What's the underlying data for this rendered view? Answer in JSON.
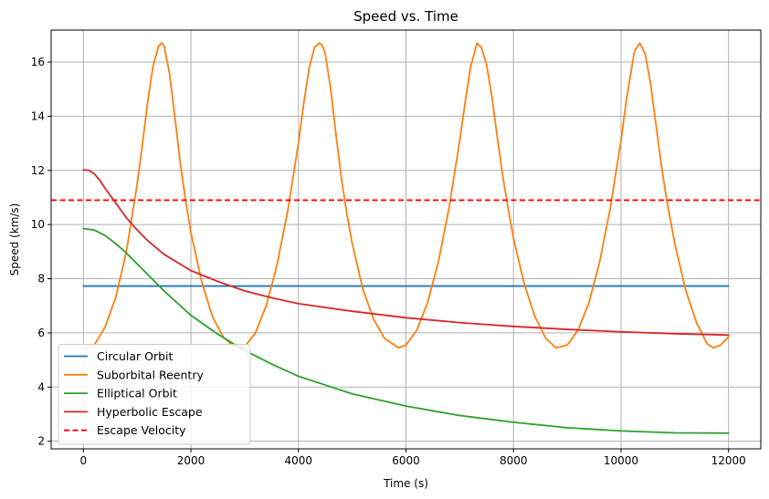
{
  "chart_data": {
    "type": "line",
    "title": "Speed vs. Time",
    "xlabel": "Time (s)",
    "ylabel": "Speed (km/s)",
    "xlim": [
      -600,
      12600
    ],
    "ylim": [
      1.72,
      17.18
    ],
    "x_ticks": [
      0,
      2000,
      4000,
      6000,
      8000,
      10000,
      12000
    ],
    "y_ticks": [
      2,
      4,
      6,
      8,
      10,
      12,
      14,
      16
    ],
    "grid": true,
    "legend_position": "lower-left",
    "series": [
      {
        "name": "Circular Orbit",
        "color": "#1f77b4",
        "style": "solid",
        "x": [
          0,
          12000
        ],
        "y": [
          7.73,
          7.73
        ]
      },
      {
        "name": "Suborbital Reentry",
        "color": "#ff7f0e",
        "style": "solid",
        "x": [
          0,
          200,
          400,
          600,
          800,
          1000,
          1100,
          1200,
          1300,
          1400,
          1460,
          1500,
          1600,
          1700,
          1800,
          1900,
          2000,
          2200,
          2400,
          2600,
          2800,
          2930,
          3000,
          3200,
          3400,
          3600,
          3800,
          4000,
          4100,
          4200,
          4300,
          4390,
          4450,
          4500,
          4600,
          4700,
          4800,
          4900,
          5000,
          5200,
          5400,
          5600,
          5860,
          6000,
          6200,
          6400,
          6600,
          6800,
          7000,
          7100,
          7200,
          7320,
          7400,
          7500,
          7600,
          7700,
          7800,
          7900,
          8000,
          8200,
          8400,
          8600,
          8790,
          9000,
          9200,
          9400,
          9600,
          9800,
          10000,
          10100,
          10250,
          10350,
          10450,
          10550,
          10650,
          10750,
          10850,
          11000,
          11200,
          11400,
          11600,
          11720,
          11850,
          12000
        ],
        "y": [
          5.4,
          5.55,
          6.2,
          7.3,
          9.0,
          11.5,
          13.0,
          14.6,
          15.9,
          16.6,
          16.7,
          16.6,
          15.6,
          14.0,
          12.3,
          10.9,
          9.7,
          7.9,
          6.6,
          5.85,
          5.5,
          5.45,
          5.5,
          6.0,
          7.0,
          8.5,
          10.5,
          13.0,
          14.5,
          15.8,
          16.55,
          16.7,
          16.6,
          16.3,
          15.0,
          13.3,
          11.7,
          10.4,
          9.3,
          7.6,
          6.5,
          5.8,
          5.45,
          5.55,
          6.1,
          7.1,
          8.6,
          10.6,
          13.1,
          14.5,
          15.8,
          16.7,
          16.55,
          15.9,
          14.7,
          13.2,
          11.8,
          10.6,
          9.5,
          7.8,
          6.6,
          5.8,
          5.45,
          5.55,
          6.1,
          7.1,
          8.6,
          10.6,
          13.1,
          14.6,
          16.4,
          16.7,
          16.3,
          15.2,
          13.7,
          12.2,
          10.9,
          9.3,
          7.6,
          6.4,
          5.6,
          5.45,
          5.55,
          5.85
        ]
      },
      {
        "name": "Elliptical Orbit",
        "color": "#2ca02c",
        "style": "solid",
        "x": [
          0,
          200,
          400,
          600,
          800,
          1000,
          1200,
          1500,
          2000,
          2500,
          3000,
          3500,
          4000,
          5000,
          6000,
          7000,
          8000,
          9000,
          10000,
          11000,
          12000
        ],
        "y": [
          9.85,
          9.8,
          9.6,
          9.3,
          8.95,
          8.55,
          8.15,
          7.55,
          6.65,
          5.95,
          5.35,
          4.85,
          4.4,
          3.75,
          3.3,
          2.95,
          2.7,
          2.5,
          2.38,
          2.31,
          2.3
        ]
      },
      {
        "name": "Hyperbolic Escape",
        "color": "#d62728",
        "style": "solid",
        "x": [
          0,
          100,
          200,
          300,
          400,
          600,
          800,
          1000,
          1200,
          1500,
          2000,
          2500,
          3000,
          3500,
          4000,
          5000,
          6000,
          7000,
          8000,
          9000,
          10000,
          11000,
          12000
        ],
        "y": [
          12.02,
          12.0,
          11.88,
          11.65,
          11.35,
          10.8,
          10.25,
          9.8,
          9.4,
          8.9,
          8.3,
          7.9,
          7.55,
          7.3,
          7.08,
          6.8,
          6.56,
          6.38,
          6.24,
          6.13,
          6.04,
          5.97,
          5.92
        ]
      },
      {
        "name": "Escape Velocity",
        "color": "#ff0000",
        "style": "dashed",
        "x": [
          -600,
          12600
        ],
        "y": [
          10.9,
          10.9
        ]
      }
    ]
  }
}
